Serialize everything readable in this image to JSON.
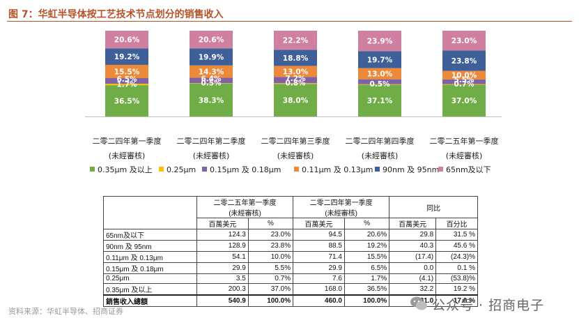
{
  "figure_title": "图 7：华虹半导体按工艺技术节点划分的销售收入",
  "chart_data": {
    "type": "bar",
    "stacked": true,
    "ylim": [
      0,
      100
    ],
    "categories": [
      [
        "二零二四年第一季度",
        "(未經審核)"
      ],
      [
        "二零二四年第二季度",
        "(未經審核)"
      ],
      [
        "二零二四年第三季度",
        "(未經審核)"
      ],
      [
        "二零二四年第四季度",
        "(未經審核)"
      ],
      [
        "二零二五年第一季度",
        "(未經審核)"
      ]
    ],
    "series": [
      {
        "name": "0.35μm 及以上",
        "color": "#70ad47",
        "values": [
          36.5,
          38.3,
          38.0,
          37.1,
          37.0
        ]
      },
      {
        "name": "0.25μm",
        "color": "#ffc000",
        "values": [
          1.7,
          0.5,
          0.8,
          0.5,
          0.7
        ]
      },
      {
        "name": "0.15μm 及 0.18μm",
        "color": "#7f61a6",
        "values": [
          6.5,
          6.4,
          7.2,
          5.8,
          5.5
        ]
      },
      {
        "name": "0.11μm 及 0.13μm",
        "color": "#ed8a3a",
        "values": [
          15.5,
          14.3,
          13.0,
          13.0,
          10.0
        ]
      },
      {
        "name": "90nm 及 95nm",
        "color": "#3e5f98",
        "values": [
          19.2,
          19.9,
          18.8,
          19.7,
          23.8
        ]
      },
      {
        "name": "65nm及以下",
        "color": "#cf7fa0",
        "values": [
          20.6,
          20.6,
          22.2,
          23.9,
          23.0
        ]
      }
    ],
    "labels": [
      [
        "36.5%",
        "1.7%",
        "6.5%",
        "15.5%",
        "19.2%",
        "20.6%"
      ],
      [
        "38.3%",
        "0.5%",
        "6.4%",
        "14.3%",
        "19.9%",
        "20.6%"
      ],
      [
        "38.0%",
        "0.8%",
        "7.2%",
        "13.0%",
        "18.8%",
        "22.2%"
      ],
      [
        "37.1%",
        "0.5%",
        "5.8%",
        "13.0%",
        "19.7%",
        "23.9%"
      ],
      [
        "37.0%",
        "0.7%",
        "5.5%",
        "10.0%",
        "23.8%",
        "23.0%"
      ]
    ],
    "visible_labels": [
      [
        true,
        true,
        true,
        true,
        true,
        true
      ],
      [
        true,
        true,
        true,
        true,
        true,
        true
      ],
      [
        true,
        true,
        true,
        true,
        true,
        true
      ],
      [
        true,
        true,
        false,
        true,
        true,
        true
      ],
      [
        true,
        true,
        true,
        true,
        true,
        true
      ]
    ],
    "legend_position": "bottom"
  },
  "table": {
    "groups": [
      {
        "title": "二零二五年第一季度",
        "subtitle": "(未經審核)"
      },
      {
        "title": "二零二四年第一季度",
        "subtitle": "(未經審核)"
      },
      {
        "title": "同比",
        "subtitle": ""
      }
    ],
    "subheaders": [
      "百萬美元",
      "%",
      "百萬美元",
      "%",
      "百萬美元",
      "百分比"
    ],
    "rows": [
      {
        "label": "65nm及以下",
        "cells": [
          "124.3",
          "23.0%",
          "94.5",
          "20.6%",
          "29.8",
          "31.5 %"
        ]
      },
      {
        "label": "90nm 及 95nm",
        "cells": [
          "128.9",
          "23.8%",
          "88.5",
          "19.2%",
          "40.3",
          "45.6 %"
        ]
      },
      {
        "label": "0.11μm 及 0.13μm",
        "cells": [
          "54.1",
          "10.0%",
          "71.4",
          "15.5%",
          "(17.4)",
          "(24.3)%"
        ]
      },
      {
        "label": "0.15μm 及 0.18μm",
        "cells": [
          "29.9",
          "5.5%",
          "29.9",
          "6.5%",
          "0.0",
          "0.1 %"
        ]
      },
      {
        "label": "0.25μm",
        "cells": [
          "3.5",
          "0.7%",
          "7.6",
          "1.7%",
          "(4.1)",
          "(53.8)%"
        ]
      },
      {
        "label": "0.35μm 及以上",
        "cells": [
          "200.3",
          "37.0%",
          "168.0",
          "36.5%",
          "32.2",
          "19.2 %"
        ]
      }
    ],
    "total": {
      "label": "銷售收入總額",
      "cells": [
        "540.9",
        "100.0%",
        "460.0",
        "100.0%",
        "81.0",
        "17.6 %"
      ]
    }
  },
  "source": "资料来源：华虹半导体、招商证券",
  "watermark": {
    "text": "公众号 · 招商电子",
    "icon": "wechat-icon"
  }
}
